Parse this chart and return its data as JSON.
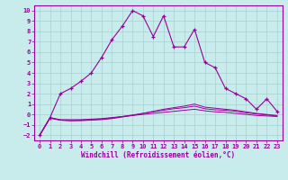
{
  "xlabel": "Windchill (Refroidissement éolien,°C)",
  "background_color": "#c8ecec",
  "grid_color": "#a8d0d0",
  "line_color": "#990099",
  "xlim": [
    -0.5,
    23.5
  ],
  "ylim": [
    -2.5,
    10.5
  ],
  "xticks": [
    0,
    1,
    2,
    3,
    4,
    5,
    6,
    7,
    8,
    9,
    10,
    11,
    12,
    13,
    14,
    15,
    16,
    17,
    18,
    19,
    20,
    21,
    22,
    23
  ],
  "yticks": [
    -2,
    -1,
    0,
    1,
    2,
    3,
    4,
    5,
    6,
    7,
    8,
    9,
    10
  ],
  "main_x": [
    0,
    1,
    2,
    3,
    4,
    5,
    6,
    7,
    8,
    9,
    10,
    11,
    12,
    13,
    14,
    15,
    16,
    17,
    18,
    19,
    20,
    21,
    22,
    23
  ],
  "main_y": [
    -2,
    -0.3,
    2.0,
    2.5,
    3.2,
    4.0,
    5.5,
    7.2,
    8.5,
    10.0,
    9.5,
    7.5,
    9.5,
    6.5,
    6.5,
    8.2,
    5.0,
    4.5,
    2.5,
    2.0,
    1.5,
    0.5,
    1.5,
    0.3
  ],
  "flat1_x": [
    0,
    1,
    2,
    3,
    4,
    5,
    6,
    7,
    8,
    9,
    10,
    11,
    12,
    13,
    14,
    15,
    16,
    17,
    18,
    19,
    20,
    21,
    22,
    23
  ],
  "flat1_y": [
    -2,
    -0.3,
    -0.5,
    -0.5,
    -0.5,
    -0.45,
    -0.4,
    -0.3,
    -0.2,
    -0.1,
    0.0,
    0.1,
    0.2,
    0.3,
    0.4,
    0.5,
    0.35,
    0.25,
    0.2,
    0.1,
    0.0,
    -0.1,
    -0.15,
    -0.2
  ],
  "flat2_x": [
    0,
    1,
    2,
    3,
    4,
    5,
    6,
    7,
    8,
    9,
    10,
    11,
    12,
    13,
    14,
    15,
    16,
    17,
    18,
    19,
    20,
    21,
    22,
    23
  ],
  "flat2_y": [
    -2,
    -0.35,
    -0.55,
    -0.6,
    -0.55,
    -0.5,
    -0.45,
    -0.35,
    -0.2,
    -0.05,
    0.1,
    0.25,
    0.4,
    0.55,
    0.65,
    0.8,
    0.55,
    0.45,
    0.4,
    0.3,
    0.15,
    0.05,
    -0.05,
    -0.15
  ],
  "flat3_x": [
    0,
    1,
    2,
    3,
    4,
    5,
    6,
    7,
    8,
    9,
    10,
    11,
    12,
    13,
    14,
    15,
    16,
    17,
    18,
    19,
    20,
    21,
    22,
    23
  ],
  "flat3_y": [
    -2,
    -0.35,
    -0.55,
    -0.6,
    -0.6,
    -0.55,
    -0.5,
    -0.4,
    -0.25,
    -0.1,
    0.1,
    0.3,
    0.5,
    0.65,
    0.8,
    1.0,
    0.7,
    0.6,
    0.5,
    0.4,
    0.25,
    0.1,
    0.0,
    -0.1
  ]
}
